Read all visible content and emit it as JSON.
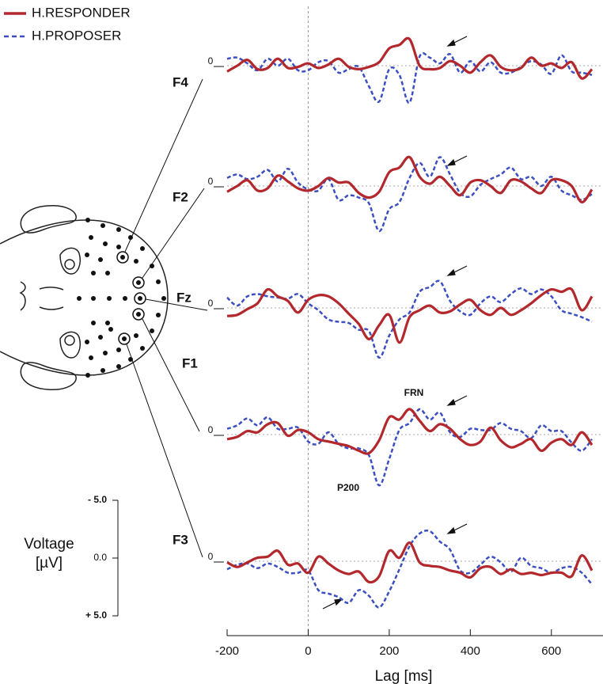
{
  "chart_data": {
    "type": "line",
    "series": [
      {
        "name": "H.RESPONDER",
        "color": "#b3282d",
        "dash": false
      },
      {
        "name": "H.PROPOSER",
        "color": "#3c4fc1",
        "dash": true
      }
    ],
    "x": [
      -200,
      -175,
      -150,
      -125,
      -100,
      -75,
      -50,
      -25,
      0,
      25,
      50,
      75,
      100,
      125,
      150,
      175,
      200,
      225,
      250,
      275,
      300,
      325,
      350,
      375,
      400,
      425,
      450,
      475,
      500,
      525,
      550,
      575,
      600,
      625,
      650,
      675,
      700
    ],
    "xlim": [
      -200,
      700
    ],
    "xticks": [
      -200,
      0,
      200,
      400,
      600
    ],
    "xlabel": "Lag [ms]",
    "ylabel": [
      "Voltage",
      "[µV]"
    ],
    "ylim": [
      5,
      -5
    ],
    "yticks": [
      {
        "value": -5,
        "label": "- 5.0"
      },
      {
        "value": 0,
        "label": "0.0"
      },
      {
        "value": 5,
        "label": "+ 5.0"
      }
    ],
    "panels": [
      {
        "title": "F4",
        "yticks": [
          0
        ],
        "values": [
          [
            0.5,
            0,
            -0.5,
            0.3,
            0.2,
            -0.6,
            0.2,
            0.1,
            -0.2,
            0.2,
            -0.1,
            -0.6,
            0.1,
            0.3,
            0.1,
            -0.3,
            -1.5,
            -1.8,
            -2.3,
            0,
            0.3,
            0.2,
            -0.4,
            0,
            0.6,
            -0.3,
            -0.9,
            0.1,
            0.4,
            0.2,
            -0.7,
            0,
            -0.2,
            0.2,
            -0.3,
            1.1,
            0.3
          ],
          [
            -0.6,
            -0.7,
            -0.2,
            0.4,
            -0.6,
            0,
            -0.6,
            0.4,
            0.4,
            -0.3,
            -0.4,
            0.6,
            0.3,
            0.1,
            1.8,
            3.1,
            0.3,
            0.8,
            3.2,
            -0.8,
            -0.7,
            -0.2,
            -1.0,
            0.6,
            -0.4,
            0.5,
            -0.3,
            0.6,
            0.6,
            0.1,
            -0.4,
            -0.1,
            0.7,
            -0.9,
            0.5,
            0.6,
            0.8
          ]
        ]
      },
      {
        "title": "F2",
        "yticks": [
          0
        ],
        "values": [
          [
            0.5,
            0,
            -0.5,
            0.4,
            0.2,
            -0.9,
            -0.4,
            0.2,
            0.4,
            0,
            -0.7,
            -0.3,
            -0.3,
            0.6,
            1.0,
            0.5,
            -1.2,
            -1.6,
            -2.5,
            -0.8,
            -0.2,
            -0.8,
            0,
            0.8,
            -0.3,
            -0.5,
            0,
            0.6,
            -0.5,
            -0.4,
            0.2,
            0.6,
            -0.5,
            -0.5,
            0,
            1.4,
            0.3
          ],
          [
            -0.7,
            -1.0,
            -0.6,
            -0.8,
            -1.4,
            -0.4,
            -1.5,
            -0.3,
            0.3,
            0.4,
            -0.6,
            1.2,
            0.8,
            1.0,
            1.5,
            3.9,
            2.0,
            1.4,
            -0.7,
            -2.0,
            -0.8,
            -2.5,
            -1.0,
            0.6,
            0.9,
            -0.1,
            -0.6,
            -1.0,
            -1.6,
            -0.6,
            -0.8,
            0,
            -0.8,
            0.4,
            0.8,
            1.2,
            0.7
          ]
        ]
      },
      {
        "title": "Fz",
        "yticks": [
          0
        ],
        "values": [
          [
            0.7,
            0.6,
            0.1,
            -0.4,
            -1.6,
            -1.0,
            -0.6,
            0.4,
            -0.7,
            -1.1,
            -1.0,
            -0.4,
            0.5,
            1.4,
            2.7,
            1.5,
            0.6,
            3.0,
            0.8,
            0.2,
            -0.2,
            0.4,
            0.3,
            -0.3,
            -0.7,
            0.2,
            0.6,
            0,
            0.6,
            0.2,
            -0.4,
            -1.1,
            -1.6,
            -1.4,
            -1.6,
            0.2,
            -1.0
          ],
          [
            -0.9,
            -0.2,
            -1.0,
            -1.2,
            -1.0,
            -0.9,
            -0.8,
            -1.2,
            -0.4,
            0.2,
            1.0,
            1.2,
            1.3,
            1.9,
            2.0,
            4.3,
            2.4,
            1.0,
            0.4,
            -1.4,
            -1.8,
            -2.3,
            -0.6,
            0.3,
            0.6,
            -0.4,
            -1.0,
            -0.5,
            -1.2,
            -1.7,
            -1.2,
            -1.6,
            -1.0,
            0.2,
            0.5,
            0.8,
            1.2
          ]
        ]
      },
      {
        "title": "F1",
        "yticks": [
          0
        ],
        "values": [
          [
            0.4,
            0.2,
            -0.3,
            -0.2,
            -0.9,
            -1.0,
            0.1,
            -0.4,
            -0.2,
            0.4,
            0.6,
            0.8,
            1.0,
            1.4,
            1.6,
            0.5,
            -1.5,
            -1.3,
            -2.2,
            -1.2,
            -0.3,
            -0.9,
            -0.5,
            0.4,
            0.9,
            0.6,
            -0.6,
            0.5,
            1.1,
            0.8,
            0.4,
            1.4,
            0.7,
            0.4,
            0.9,
            -0.2,
            0.9
          ],
          [
            -0.5,
            -0.8,
            -1.4,
            -0.8,
            -1.5,
            -0.5,
            -0.5,
            -0.6,
            0.6,
            0.8,
            -0.2,
            0.8,
            1.2,
            1.2,
            1.8,
            4.4,
            2.1,
            -0.4,
            -1.0,
            -2.2,
            -1.3,
            -1.9,
            -0.2,
            0.2,
            -0.5,
            -0.4,
            -0.4,
            -1.0,
            -0.5,
            -0.3,
            0.3,
            -0.8,
            -0.3,
            -0.3,
            0.7,
            1.4,
            0.4
          ]
        ]
      },
      {
        "title": "F3",
        "yticks": [
          0
        ],
        "values": [
          [
            0.1,
            0.5,
            0.1,
            -0.3,
            -0.4,
            -0.9,
            0.3,
            0.2,
            1.0,
            -0.4,
            0.2,
            0.8,
            1.1,
            0.9,
            1.8,
            1.3,
            -0.9,
            -0.3,
            -1.6,
            0.1,
            0.4,
            0.5,
            0.8,
            1.0,
            1.4,
            0.6,
            0.5,
            1.1,
            0.7,
            1.1,
            1.0,
            1.2,
            1.0,
            1.0,
            1.3,
            -0.5,
            0.8
          ],
          [
            0.7,
            0.3,
            0.2,
            0.6,
            0.2,
            0.5,
            1.0,
            1.0,
            0.8,
            2.5,
            2.8,
            3.1,
            3.6,
            2.5,
            3.0,
            4.0,
            2.6,
            0.7,
            -1.3,
            -2.4,
            -2.6,
            -1.7,
            -1.0,
            0.8,
            1.0,
            0.3,
            -0.4,
            0.1,
            0.9,
            -0.3,
            0.4,
            0.6,
            1.0,
            0.6,
            0.5,
            1.0,
            2.0
          ]
        ]
      }
    ],
    "annotations": [
      "FRN",
      "P200"
    ]
  }
}
